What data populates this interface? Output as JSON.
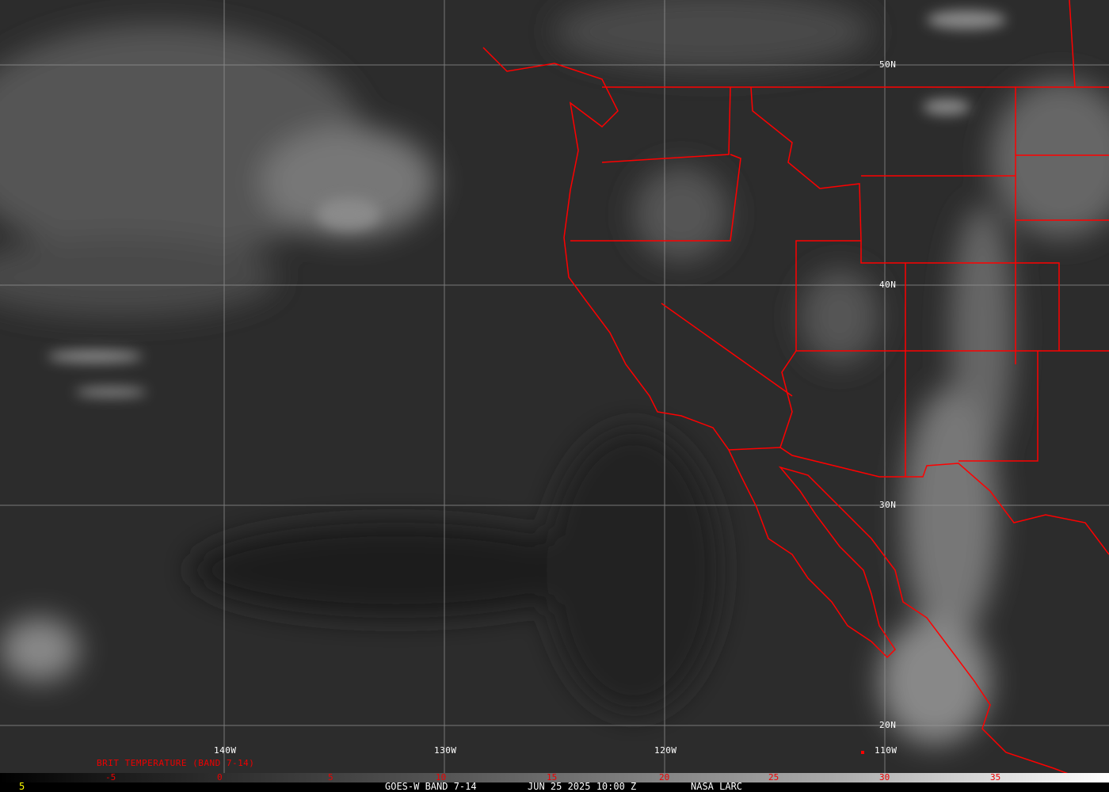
{
  "map": {
    "type": "satellite infrared image",
    "colors": {
      "boundaries": "#ff0000",
      "grid": "#9a9a9a",
      "labels": "#ffffff",
      "scale_labels": "#e00000",
      "corner_label": "#ffff00"
    },
    "lat_labels": [
      "50N",
      "40N",
      "30N",
      "20N"
    ],
    "lon_labels": [
      "140W",
      "130W",
      "120W",
      "110W"
    ]
  },
  "colorbar": {
    "title": "BRIT TEMPERATURE (BAND 7-14)",
    "ticks": [
      "-5",
      "0",
      "5",
      "10",
      "15",
      "20",
      "25",
      "30",
      "35"
    ]
  },
  "footer": {
    "corner": "5",
    "satellite": "GOES-W BAND 7-14",
    "datetime": "JUN 25 2025 10:00 Z",
    "source": "NASA LARC"
  }
}
